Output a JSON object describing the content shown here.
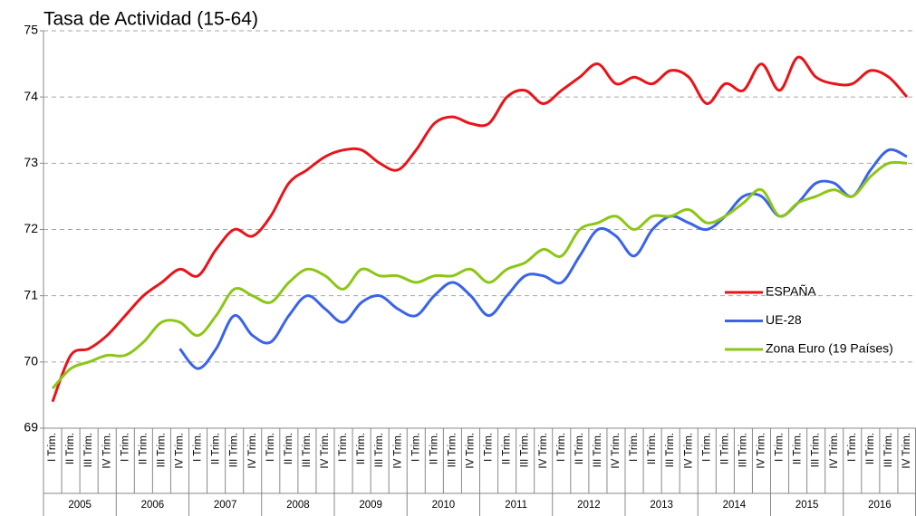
{
  "chart_data": {
    "type": "line",
    "title": "Tasa de Actividad (15-64)",
    "categories": [
      "I Trim.",
      "II Trim.",
      "III Trim.",
      "IV Trim.",
      "I Trim.",
      "II Trim.",
      "III Trim.",
      "IV Trim.",
      "I Trim.",
      "II Trim.",
      "III Trim.",
      "IV Trim.",
      "I Trim.",
      "II Trim.",
      "III Trim.",
      "IV Trim.",
      "I Trim.",
      "II Trim.",
      "III Trim.",
      "IV Trim.",
      "I Trim.",
      "II Trim.",
      "III Trim.",
      "IV Trim.",
      "I Trim.",
      "II Trim.",
      "III Trim.",
      "IV Trim.",
      "I Trim.",
      "II Trim.",
      "III Trim.",
      "IV Trim.",
      "I Trim.",
      "II Trim.",
      "III Trim.",
      "IV Trim.",
      "I Trim.",
      "II Trim.",
      "III Trim.",
      "IV Trim.",
      "I Trim.",
      "II Trim.",
      "III Trim.",
      "IV Trim.",
      "I Trim.",
      "II Trim.",
      "III Trim.",
      "IV Trim."
    ],
    "category_groups": [
      "2005",
      "2006",
      "2007",
      "2008",
      "2009",
      "2010",
      "2011",
      "2012",
      "2013",
      "2014",
      "2015",
      "2016"
    ],
    "series": [
      {
        "name": "ESPAÑA",
        "color": "#e8141a",
        "values": [
          69.4,
          70.1,
          70.2,
          70.4,
          70.7,
          71.0,
          71.2,
          71.4,
          71.3,
          71.7,
          72.0,
          71.9,
          72.2,
          72.7,
          72.9,
          73.1,
          73.2,
          73.2,
          73.0,
          72.9,
          73.2,
          73.6,
          73.7,
          73.6,
          73.6,
          74.0,
          74.1,
          73.9,
          74.1,
          74.3,
          74.5,
          74.2,
          74.3,
          74.2,
          74.4,
          74.3,
          73.9,
          74.2,
          74.1,
          74.5,
          74.1,
          74.6,
          74.3,
          74.2,
          74.2,
          74.4,
          74.3,
          74.0
        ]
      },
      {
        "name": "UE-28",
        "color": "#3a63e8",
        "values": [
          null,
          null,
          null,
          null,
          null,
          null,
          null,
          70.2,
          69.9,
          70.2,
          70.7,
          70.4,
          70.3,
          70.7,
          71.0,
          70.8,
          70.6,
          70.9,
          71.0,
          70.8,
          70.7,
          71.0,
          71.2,
          71.0,
          70.7,
          71.0,
          71.3,
          71.3,
          71.2,
          71.6,
          72.0,
          71.9,
          71.6,
          72.0,
          72.2,
          72.1,
          72.0,
          72.2,
          72.5,
          72.5,
          72.2,
          72.4,
          72.7,
          72.7,
          72.5,
          72.9,
          73.2,
          73.1
        ]
      },
      {
        "name": "Zona Euro (19 Países)",
        "color": "#8cc617",
        "values": [
          69.6,
          69.9,
          70.0,
          70.1,
          70.1,
          70.3,
          70.6,
          70.6,
          70.4,
          70.7,
          71.1,
          71.0,
          70.9,
          71.2,
          71.4,
          71.3,
          71.1,
          71.4,
          71.3,
          71.3,
          71.2,
          71.3,
          71.3,
          71.4,
          71.2,
          71.4,
          71.5,
          71.7,
          71.6,
          72.0,
          72.1,
          72.2,
          72.0,
          72.2,
          72.2,
          72.3,
          72.1,
          72.2,
          72.4,
          72.6,
          72.2,
          72.4,
          72.5,
          72.6,
          72.5,
          72.8,
          73.0,
          73.0
        ]
      }
    ],
    "ylim": [
      69,
      75
    ],
    "yticks": [
      69,
      70,
      71,
      72,
      73,
      74,
      75
    ],
    "grid": true
  }
}
